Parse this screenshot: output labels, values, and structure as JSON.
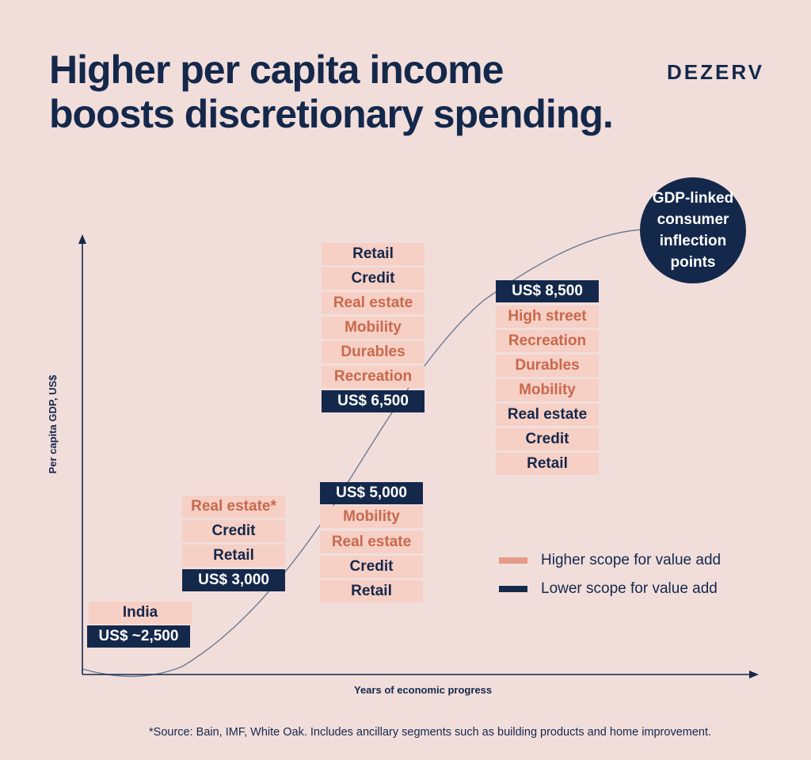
{
  "header": {
    "title_line1": "Higher per capita income",
    "title_line2": "boosts discretionary spending.",
    "brand": "DEZERV"
  },
  "axes": {
    "y_label": "Per capita GDP, US$",
    "x_label": "Years of economic progress"
  },
  "badge": {
    "text": "GDP-linked consumer inflection points"
  },
  "stages": [
    {
      "price": "US$ ~2,500",
      "segments": [
        {
          "label": "India",
          "scope": "lower"
        }
      ]
    },
    {
      "price": "US$ 3,000",
      "segments": [
        {
          "label": "Real estate*",
          "scope": "higher"
        },
        {
          "label": "Credit",
          "scope": "lower"
        },
        {
          "label": "Retail",
          "scope": "lower"
        }
      ]
    },
    {
      "price": "US$ 5,000",
      "segments": [
        {
          "label": "Mobility",
          "scope": "higher"
        },
        {
          "label": "Real estate",
          "scope": "higher"
        },
        {
          "label": "Credit",
          "scope": "lower"
        },
        {
          "label": "Retail",
          "scope": "lower"
        }
      ]
    },
    {
      "price": "US$ 6,500",
      "segments": [
        {
          "label": "Retail",
          "scope": "lower"
        },
        {
          "label": "Credit",
          "scope": "lower"
        },
        {
          "label": "Real estate",
          "scope": "higher"
        },
        {
          "label": "Mobility",
          "scope": "higher"
        },
        {
          "label": "Durables",
          "scope": "higher"
        },
        {
          "label": "Recreation",
          "scope": "higher"
        }
      ]
    },
    {
      "price": "US$ 8,500",
      "segments": [
        {
          "label": "High street",
          "scope": "higher"
        },
        {
          "label": "Recreation",
          "scope": "higher"
        },
        {
          "label": "Durables",
          "scope": "higher"
        },
        {
          "label": "Mobility",
          "scope": "higher"
        },
        {
          "label": "Real estate",
          "scope": "lower"
        },
        {
          "label": "Credit",
          "scope": "lower"
        },
        {
          "label": "Retail",
          "scope": "lower"
        }
      ]
    }
  ],
  "legend": {
    "higher": "Higher scope for value add",
    "lower": "Lower scope for value add"
  },
  "footnote": "*Source: Bain, IMF, White Oak. Includes ancillary segments such as building products and home improvement.",
  "colors": {
    "background": "#f1dedb",
    "navy": "#14284b",
    "higher_text": "#c8694c",
    "cell_bg": "#f6cfc5",
    "legend_higher_swatch": "#e49a84"
  }
}
